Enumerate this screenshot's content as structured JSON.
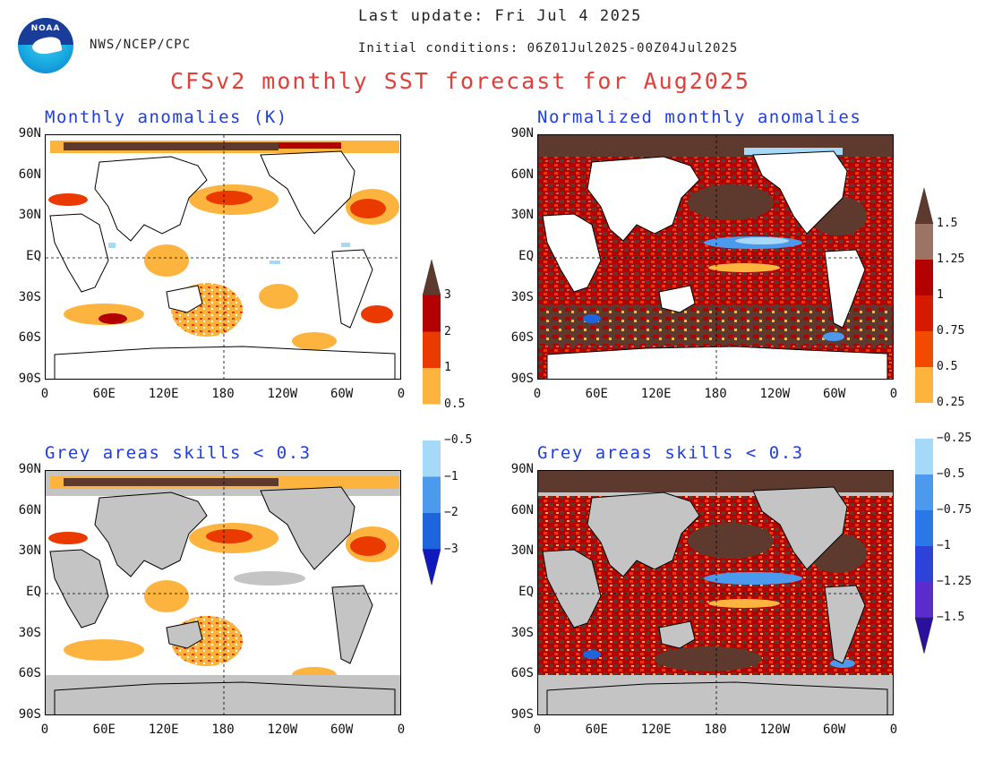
{
  "header": {
    "agency": "NWS/NCEP/CPC",
    "last_update": "Last update: Fri Jul 4 2025",
    "initial_conditions": "Initial conditions: 06Z01Jul2025-00Z04Jul2025",
    "title": "CFSv2 monthly SST forecast for Aug2025",
    "logo_text": "NOAA"
  },
  "axes": {
    "lat_labels": [
      "90N",
      "60N",
      "30N",
      "EQ",
      "30S",
      "60S",
      "90S"
    ],
    "lon_labels": [
      "0",
      "60E",
      "120E",
      "180",
      "120W",
      "60W",
      "0"
    ]
  },
  "panels": [
    {
      "id": "anom",
      "title": "Monthly anomalies (K)"
    },
    {
      "id": "norm",
      "title": "Normalized monthly anomalies"
    },
    {
      "id": "anom_skill",
      "title": "Grey areas skills < 0.3"
    },
    {
      "id": "norm_skill",
      "title": "Grey areas skills < 0.3"
    }
  ],
  "colorbars": {
    "anomaly": {
      "labels": [
        "3",
        "2",
        "1",
        "0.5",
        "−0.5",
        "−1",
        "−2",
        "−3"
      ],
      "colors": [
        "#5e3a2e",
        "#b30000",
        "#ea3a00",
        "#fdb43f",
        "#ffffff",
        "#a6d8f8",
        "#4b9aee",
        "#1e64dc",
        "#1018c0"
      ]
    },
    "normalized": {
      "labels": [
        "1.5",
        "1.25",
        "1",
        "0.75",
        "0.5",
        "0.25",
        "−0.25",
        "−0.5",
        "−0.75",
        "−1",
        "−1.25",
        "−1.5"
      ],
      "colors": [
        "#5e3a2e",
        "#9c7466",
        "#b30000",
        "#d61a00",
        "#f24a00",
        "#fdb43f",
        "#ffffff",
        "#a6d8f8",
        "#4b9aee",
        "#2a78e8",
        "#2d42d8",
        "#5a2ccc",
        "#2a109a"
      ]
    }
  },
  "colors": {
    "title_red": "#e0403a",
    "panel_title_blue": "#1f3ce8",
    "skill_grey": "#c4c4c4"
  }
}
